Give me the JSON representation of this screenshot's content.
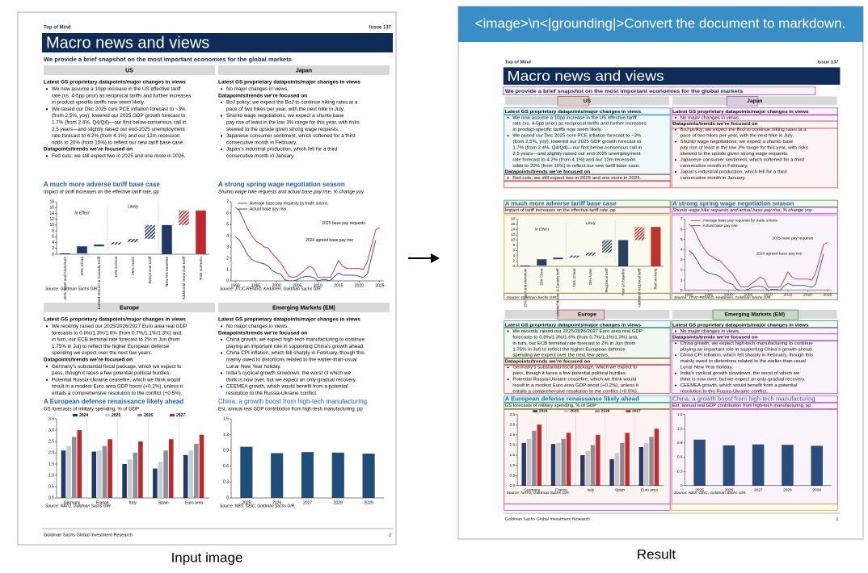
{
  "header": {
    "prompt": "<image>\\n<|grounding|>Convert the document to markdown."
  },
  "labels": {
    "input": "Input image",
    "result": "Result"
  },
  "document": {
    "top_left": "Top of Mind",
    "top_right": "Issue 137",
    "title": "Macro news and views",
    "subtitle": "We provide a brief snapshot on the most important economies for the global markets",
    "footer": "Goldman Sachs Global Investment Research",
    "page_number": 2,
    "sections": [
      {
        "name": "US",
        "blocks": [
          {
            "heading": "Latest GS proprietary datapoints/major changes in views"
          },
          {
            "bullets": [
              [
                "We now assume a 10pp increase in the US effective tariff",
                "rate (vs. 4-5pp prior) as reciprocal tariffs and further increases",
                "in product-specific tariffs now seem likely."
              ],
              [
                "We raised our Dec 2025 core PCE inflation forecast to ~3%",
                "(from 2.5%, yoy), lowered our 2025 GDP growth forecast to",
                "1.7% (from 2.4%, Q4/Q4)—our first below-consensus call in",
                "2.5 years—and slightly raised our end-2025 unemployment",
                "rate forecast to 4.2% (from 4.1%) and our 12m recession",
                "odds to 20% (from 15%) to reflect our new tariff base case."
              ]
            ]
          },
          {
            "heading": "Datapoints/trends we’re focused on"
          },
          {
            "bullets": [
              [
                "Fed cuts; we still expect two in 2025 and one more in 2026."
              ]
            ]
          }
        ]
      },
      {
        "name": "Japan",
        "blocks": [
          {
            "heading": "Latest GS proprietary datapoints/major changes in views"
          },
          {
            "bullets": [
              [
                "No major changes in views."
              ]
            ]
          },
          {
            "heading": "Datapoints/trends we’re focused on"
          },
          {
            "bullets": [
              [
                "BoJ policy; we expect the BoJ to continue hiking rates at a",
                "pace of two hikes per year, with the next hike in July."
              ],
              [
                "Shunto wage negotiations; we expect a shunto base",
                "pay rise of least in the low 3% range for this year, with risks",
                "skewed to the upside given strong wage requests."
              ],
              [
                "Japanese consumer sentiment, which softened for a third",
                "consecutive month in February."
              ],
              [
                "Japan’s industrial production, which fell for a third",
                "consecutive month in January."
              ]
            ]
          }
        ]
      },
      {
        "name": "Europe",
        "blocks": [
          {
            "heading": "Latest GS proprietary datapoints/major changes in views"
          },
          {
            "bullets": [
              [
                "We recently raised our 2025/2026/2027 Euro area real GDP",
                "forecasts to 0.8%/1.3%/1.6% (from 0.7%/1.1%/1.3%) and,",
                "in turn, our ECB terminal rate forecast to 2% in Jun (from",
                "1.75% in Jul) to reflect the higher European defense",
                "spending we expect over the next few years."
              ]
            ]
          },
          {
            "heading": "Datapoints/trends we’re focused on"
          },
          {
            "bullets": [
              [
                "Germany’s substantial fiscal package, which we expect to",
                "pass, though it faces a few potential political hurdles."
              ],
              [
                "Potential Russia-Ukraine ceasefire, which we think would",
                "result in a modest Euro area GDP boost (+0.2%), unless it",
                "entails a comprehensive resolution to the conflict (+0.5%)."
              ]
            ]
          }
        ]
      },
      {
        "name": "Emerging Markets (EM)",
        "blocks": [
          {
            "heading": "Latest GS proprietary datapoints/major changes in views"
          },
          {
            "bullets": [
              [
                "No major changes in views."
              ]
            ]
          },
          {
            "heading": "Datapoints/trends we’re focused on"
          },
          {
            "bullets": [
              [
                "China growth; we expect high-tech manufacturing to continue",
                "playing an important role in supporting China’s growth ahead."
              ],
              [
                "China CPI inflation, which fell sharply in February, though this",
                "mainly owed to distortions related to the earlier-than-usual",
                "Lunar New Year holiday."
              ],
              [
                "India’s cyclical growth slowdown, the worst of which we",
                "think is now over, but we expect an only-gradual recovery."
              ],
              [
                "CEEMEA growth, which would benefit from a potential",
                "resolution to the Russia-Ukraine conflict."
              ]
            ]
          }
        ]
      }
    ],
    "charts": [
      {
        "type": "waterfall",
        "title": "A much more adverse tariff base case",
        "subtitle": "Impact of tariff increases on the effective tariff rate, pp",
        "source": "Source: Goldman Sachs GIR.",
        "annotations": [
          "In Effect",
          "Likely"
        ],
        "categories": [
          "25% Steel and Aluminum",
          "20% China",
          "Limited Mexico & Canada tariff",
          "10% Critical",
          "25% Autos",
          "Reciprocal tariff",
          "New GS baseline",
          "Additional reciprocal tariff",
          "Risk scenario"
        ],
        "values": [
          0.3,
          2.4,
          0.6,
          0.8,
          1.2,
          4.7,
          10,
          5,
          15
        ],
        "is_total": [
          false,
          false,
          false,
          false,
          false,
          false,
          true,
          false,
          true
        ],
        "hatched": [
          false,
          false,
          false,
          true,
          true,
          true,
          false,
          true,
          false
        ],
        "colors": [
          "#1f3a68",
          "#1f3a68",
          "#1f3a68",
          "#1f3a68",
          "#1f3a68",
          "#1f3a68",
          "#1f3a68",
          "#c0282d",
          "#c0282d"
        ],
        "ylim": [
          0,
          18
        ],
        "yticks": [
          0,
          2,
          4,
          6,
          8,
          10,
          12,
          14,
          16,
          18
        ]
      },
      {
        "type": "line",
        "title": "A strong spring wage negotiation season",
        "subtitle": "Shunto wage hike requests and actual base pay rise, % change yoy",
        "source": "Source: JTUC-RENGO, Kedanren, Goldman Sachs GIR.",
        "annotations": [
          "2025 base pay requests",
          "2024 agreed base pay rise"
        ],
        "x": [
          1990,
          1991,
          1992,
          1993,
          1994,
          1995,
          1996,
          1997,
          1998,
          1999,
          2000,
          2001,
          2002,
          2003,
          2004,
          2005,
          2006,
          2007,
          2008,
          2009,
          2010,
          2011,
          2012,
          2013,
          2014,
          2015,
          2016,
          2017,
          2018,
          2019,
          2020,
          2021,
          2022,
          2023,
          2024,
          2025
        ],
        "series": [
          {
            "name": "Average base pay requests by trade unions",
            "color": "#d2373c",
            "values": [
              6.5,
              6.2,
              5.4,
              4.6,
              4.0,
              3.5,
              3.3,
              3.0,
              2.9,
              2.4,
              2.0,
              1.6,
              1.0,
              0.4,
              0.3,
              0.4,
              0.7,
              1.0,
              1.3,
              1.1,
              0.3,
              0.3,
              0.3,
              0.3,
              1.0,
              1.8,
              1.3,
              1.1,
              1.1,
              1.1,
              1.1,
              1.0,
              1.7,
              3.1,
              4.5,
              4.7
            ]
          },
          {
            "name": "Actual base pay rise",
            "color": "#2c5aa0",
            "values": [
              3.9,
              3.6,
              3.0,
              2.3,
              1.9,
              1.7,
              1.6,
              1.5,
              1.3,
              0.9,
              0.7,
              0.6,
              0.1,
              0.0,
              0.0,
              0.1,
              0.3,
              0.4,
              0.4,
              0.3,
              0.0,
              0.1,
              0.1,
              0.0,
              0.4,
              0.7,
              0.5,
              0.5,
              0.5,
              0.5,
              0.4,
              0.3,
              0.6,
              2.1,
              3.6,
              null
            ]
          }
        ],
        "xlim": [
          1989,
          2026
        ],
        "xticks": [
          1990,
          1995,
          2000,
          2005,
          2010,
          2015,
          2020,
          2025
        ],
        "ylim": [
          0,
          7
        ],
        "yticks": [
          0,
          1,
          2,
          3,
          4,
          5,
          6,
          7
        ]
      },
      {
        "type": "grouped_bar",
        "title": "A European defense renaissance likely ahead",
        "subtitle": "GS forecasts of military spending, % of GDP",
        "source": "Source: NATO, Goldman Sachs GIR.",
        "categories": [
          "Germany",
          "France",
          "Italy",
          "Spain",
          "Euro area"
        ],
        "series": [
          {
            "name": "2024",
            "color": "#1f3a68",
            "values": [
              2.1,
              2.05,
              1.5,
              1.3,
              1.9
            ]
          },
          {
            "name": "2025",
            "color": "#c9ccd3",
            "values": [
              2.3,
              2.1,
              1.7,
              1.6,
              2.1
            ]
          },
          {
            "name": "2026",
            "color": "#8a8f99",
            "values": [
              2.7,
              2.3,
              2.0,
              2.1,
              2.4
            ]
          },
          {
            "name": "2027",
            "color": "#c0282d",
            "values": [
              3.0,
              2.6,
              2.5,
              2.6,
              2.8
            ]
          }
        ],
        "ylim": [
          0,
          3.5
        ],
        "yticks": [
          {
            "value": 0,
            "label": "0.0"
          },
          0.5,
          {
            "value": 1,
            "label": "1.0"
          },
          1.5,
          {
            "value": 2,
            "label": "2.0"
          },
          2.5,
          {
            "value": 3,
            "label": "3.0"
          },
          3.5
        ]
      },
      {
        "type": "bar",
        "title": "China: a growth boost from high-tech manufacturing",
        "subtitle": "Est. annual real GDP contribution from high-tech manufacturing, pp",
        "source": "Source: NBS, CEIC, Goldman Sachs GIR.",
        "categories": [
          "2025",
          "2026",
          "2027",
          "2028",
          "2029"
        ],
        "values": [
          0.97,
          0.85,
          0.87,
          0.86,
          0.84
        ],
        "color": "#1f4e79",
        "ylim": [
          0,
          1.5
        ],
        "yticks": [
          0,
          0.3,
          0.6,
          0.9,
          1.2,
          1.5
        ]
      }
    ]
  }
}
